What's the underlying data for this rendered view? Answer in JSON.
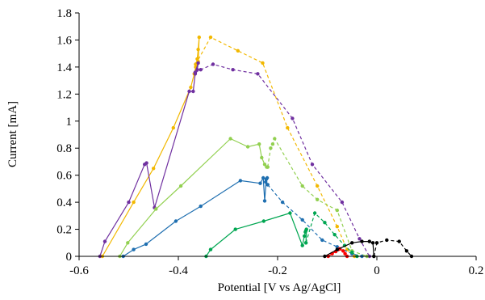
{
  "chart_data": {
    "type": "scatter",
    "title": "",
    "xlabel": "Potential [V vs Ag/AgCl]",
    "ylabel": "Current [mA]",
    "xlim": [
      -0.6,
      0.2
    ],
    "ylim": [
      0,
      1.8
    ],
    "xticks": [
      -0.6,
      -0.4,
      -0.2,
      0,
      0.2
    ],
    "xtick_labels": [
      "-0.6",
      "-0.4",
      "-0.2",
      "0",
      "0.2"
    ],
    "yticks": [
      0,
      0.2,
      0.4,
      0.6,
      0.8,
      1,
      1.2,
      1.4,
      1.6,
      1.8
    ],
    "ytick_labels": [
      "0",
      "0.2",
      "0.4",
      "0.6",
      "0.8",
      "1",
      "1.2",
      "1.4",
      "1.6",
      "1.8"
    ],
    "grid": false,
    "legend": "none",
    "series": [
      {
        "color": "#F2B800",
        "style": "solid",
        "x": [
          -0.553,
          -0.49,
          -0.45,
          -0.41,
          -0.375,
          -0.368,
          -0.365,
          -0.362,
          -0.36,
          -0.358,
          -0.36,
          -0.362,
          -0.365
        ],
        "y": [
          0.0,
          0.4,
          0.65,
          0.95,
          1.25,
          1.35,
          1.4,
          1.46,
          1.53,
          1.62,
          1.44,
          1.43,
          1.42
        ]
      },
      {
        "color": "#F2B800",
        "style": "dashed",
        "x": [
          -0.365,
          -0.335,
          -0.28,
          -0.23,
          -0.18,
          -0.12,
          -0.08,
          -0.06,
          -0.045
        ],
        "y": [
          1.42,
          1.62,
          1.52,
          1.43,
          0.95,
          0.52,
          0.22,
          0.05,
          0.0
        ]
      },
      {
        "color": "#7030A0",
        "style": "solid",
        "x": [
          -0.558,
          -0.548,
          -0.5,
          -0.468,
          -0.464,
          -0.448,
          -0.378,
          -0.37,
          -0.366,
          -0.362,
          -0.36,
          -0.366
        ],
        "y": [
          0.0,
          0.11,
          0.4,
          0.68,
          0.69,
          0.36,
          1.22,
          1.22,
          1.35,
          1.38,
          1.43,
          1.36
        ]
      },
      {
        "color": "#7030A0",
        "style": "dashed",
        "x": [
          -0.366,
          -0.355,
          -0.33,
          -0.29,
          -0.24,
          -0.17,
          -0.13,
          -0.07,
          -0.035,
          -0.015
        ],
        "y": [
          1.36,
          1.38,
          1.42,
          1.38,
          1.35,
          1.02,
          0.68,
          0.4,
          0.13,
          0.0
        ]
      },
      {
        "color": "#92D050",
        "style": "solid",
        "x": [
          -0.518,
          -0.502,
          -0.445,
          -0.395,
          -0.295,
          -0.26,
          -0.237,
          -0.232,
          -0.226,
          -0.222,
          -0.22
        ],
        "y": [
          0.0,
          0.1,
          0.35,
          0.52,
          0.87,
          0.81,
          0.83,
          0.73,
          0.68,
          0.66,
          0.66
        ]
      },
      {
        "color": "#92D050",
        "style": "dashed",
        "x": [
          -0.22,
          -0.214,
          -0.21,
          -0.206,
          -0.15,
          -0.12,
          -0.08,
          -0.05,
          -0.02
        ],
        "y": [
          0.66,
          0.8,
          0.83,
          0.87,
          0.52,
          0.42,
          0.34,
          0.04,
          0.0
        ]
      },
      {
        "color": "#1F6FB0",
        "style": "solid",
        "x": [
          -0.511,
          -0.49,
          -0.465,
          -0.405,
          -0.355,
          -0.275,
          -0.235,
          -0.229,
          -0.226,
          -0.223,
          -0.221,
          -0.224,
          -0.22
        ],
        "y": [
          0.0,
          0.05,
          0.09,
          0.26,
          0.37,
          0.56,
          0.54,
          0.58,
          0.41,
          0.57,
          0.58,
          0.55,
          0.53
        ]
      },
      {
        "color": "#1F6FB0",
        "style": "dashed",
        "x": [
          -0.22,
          -0.19,
          -0.15,
          -0.11,
          -0.08,
          -0.05,
          -0.03
        ],
        "y": [
          0.53,
          0.4,
          0.27,
          0.12,
          0.07,
          0.02,
          0.0
        ]
      },
      {
        "color": "#00A651",
        "style": "solid",
        "x": [
          -0.344,
          -0.335,
          -0.285,
          -0.228,
          -0.175,
          -0.15,
          -0.146,
          -0.144,
          -0.143,
          -0.142,
          -0.143
        ],
        "y": [
          0.0,
          0.05,
          0.2,
          0.26,
          0.32,
          0.08,
          0.15,
          0.18,
          0.19,
          0.2,
          0.1
        ]
      },
      {
        "color": "#00A651",
        "style": "dashed",
        "x": [
          -0.143,
          -0.125,
          -0.105,
          -0.085,
          -0.065,
          -0.05,
          -0.04
        ],
        "y": [
          0.1,
          0.32,
          0.25,
          0.16,
          0.08,
          0.03,
          0.0
        ]
      },
      {
        "color": "#FF0000",
        "style": "solid",
        "x": [
          -0.098,
          -0.09,
          -0.083,
          -0.078,
          -0.075
        ],
        "y": [
          0.0,
          0.02,
          0.035,
          0.05,
          0.055
        ]
      },
      {
        "color": "#FF0000",
        "style": "dashed",
        "x": [
          -0.075,
          -0.068,
          -0.064,
          -0.06
        ],
        "y": [
          0.055,
          0.04,
          0.02,
          0.0
        ]
      },
      {
        "color": "#000000",
        "style": "solid",
        "x": [
          -0.105,
          -0.08,
          -0.05,
          -0.03,
          -0.015,
          -0.008,
          -0.006
        ],
        "y": [
          0.0,
          0.05,
          0.1,
          0.11,
          0.11,
          0.1,
          0.0
        ]
      },
      {
        "color": "#000000",
        "style": "dashed",
        "x": [
          -0.006,
          0.0,
          0.02,
          0.045,
          0.06,
          0.07
        ],
        "y": [
          0.0,
          0.1,
          0.12,
          0.11,
          0.04,
          0.0
        ]
      }
    ]
  }
}
